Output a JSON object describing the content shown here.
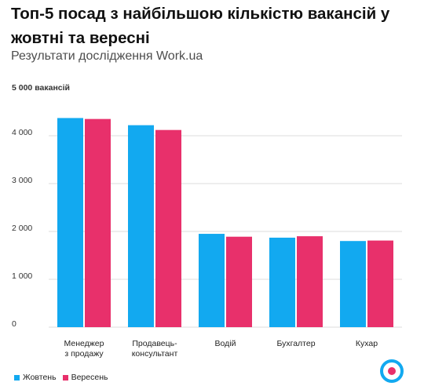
{
  "title": "Топ-5 посад з найбільшою кількістю вакансій у жовтні та вересні",
  "subtitle": "Результати дослідження Work.ua",
  "colors": {
    "october": "#12a9f0",
    "september": "#e8306b",
    "grid": "#dcdcdc",
    "logo_outer": "#12a9f0",
    "logo_inner": "#e8306b"
  },
  "logo_icon": "target-icon",
  "chart_data": {
    "type": "bar",
    "categories": [
      [
        "Менеджер",
        "з продажу"
      ],
      [
        "Продавець-",
        "консультант"
      ],
      [
        "Водій"
      ],
      [
        "Бухгалтер"
      ],
      [
        "Кухар"
      ]
    ],
    "series": [
      {
        "name": "Жовтень",
        "values": [
          4370,
          4220,
          1950,
          1870,
          1800
        ]
      },
      {
        "name": "Вересень",
        "values": [
          4350,
          4120,
          1890,
          1900,
          1810
        ]
      }
    ],
    "ylim": [
      0,
      5000
    ],
    "yticks": [
      {
        "value": 0,
        "label": "0"
      },
      {
        "value": 1000,
        "label": "1 000"
      },
      {
        "value": 2000,
        "label": "2 000"
      },
      {
        "value": 3000,
        "label": "3 000"
      },
      {
        "value": 4000,
        "label": "4 000"
      },
      {
        "value": 5000,
        "label": "5 000 вакансій"
      }
    ],
    "grid": true,
    "legend_position": "bottom-left"
  }
}
